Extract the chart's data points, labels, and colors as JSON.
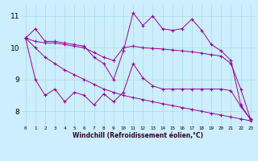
{
  "xlabel": "Windchill (Refroidissement éolien,°C)",
  "background_color": "#cceeff",
  "line_color": "#990099",
  "grid_color": "#aadddd",
  "xlim": [
    -0.5,
    23.5
  ],
  "ylim": [
    7.55,
    11.35
  ],
  "yticks": [
    8,
    9,
    10,
    11
  ],
  "xticks": [
    0,
    1,
    2,
    3,
    4,
    5,
    6,
    7,
    8,
    9,
    10,
    11,
    12,
    13,
    14,
    15,
    16,
    17,
    18,
    19,
    20,
    21,
    22,
    23
  ],
  "s1": [
    10.3,
    10.6,
    10.2,
    10.2,
    10.15,
    10.1,
    10.05,
    9.7,
    9.5,
    9.0,
    9.9,
    11.1,
    10.7,
    11.0,
    10.6,
    10.55,
    10.6,
    10.9,
    10.55,
    10.1,
    9.9,
    9.6,
    8.2,
    7.75
  ],
  "s2": [
    10.3,
    10.2,
    10.15,
    10.15,
    10.1,
    10.05,
    10.0,
    9.85,
    9.7,
    9.6,
    10.0,
    10.05,
    10.0,
    9.98,
    9.96,
    9.93,
    9.9,
    9.87,
    9.83,
    9.78,
    9.74,
    9.5,
    8.7,
    7.75
  ],
  "s3": [
    10.3,
    9.0,
    8.5,
    8.7,
    8.3,
    8.6,
    8.5,
    8.2,
    8.55,
    8.3,
    8.6,
    9.5,
    9.05,
    8.8,
    8.7,
    8.7,
    8.7,
    8.7,
    8.7,
    8.7,
    8.7,
    8.65,
    8.15,
    7.75
  ],
  "s4": [
    10.3,
    10.0,
    9.7,
    9.5,
    9.3,
    9.15,
    9.0,
    8.85,
    8.7,
    8.6,
    8.5,
    8.43,
    8.37,
    8.3,
    8.24,
    8.18,
    8.12,
    8.06,
    8.0,
    7.94,
    7.88,
    7.82,
    7.76,
    7.7
  ]
}
